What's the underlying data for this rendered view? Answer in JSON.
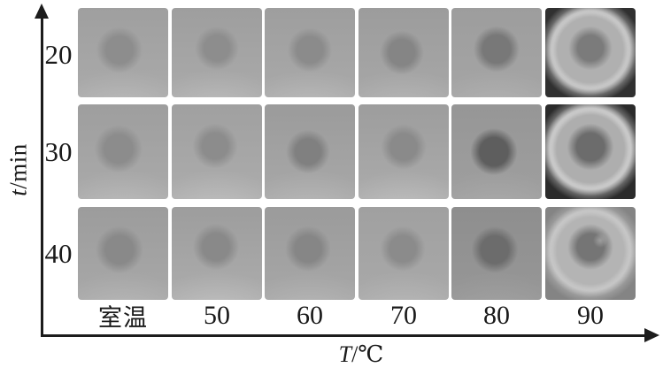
{
  "figure": {
    "axes": {
      "x_symbol": "T",
      "x_unit": "/℃",
      "x_label": "T/℃",
      "y_symbol": "t",
      "y_unit": "/min",
      "y_label": "t/min",
      "x_ticks": [
        "室温",
        "50",
        "60",
        "70",
        "80",
        "90"
      ],
      "y_ticks": [
        "20",
        "30",
        "40"
      ]
    }
  },
  "chart_data": {
    "type": "heatmap",
    "title": "",
    "xlabel": "T/℃",
    "ylabel": "t/min",
    "x_categories": [
      "室温",
      "50",
      "60",
      "70",
      "80",
      "90"
    ],
    "y_categories": [
      "20",
      "30",
      "40"
    ],
    "legend": null,
    "grid_lines": false,
    "cell_content": "grayscale photographs of circular samples in dishes; central spot darkens as temperature increases, darkest at 80-90 ℃",
    "relative_spot_darkness_1to5": [
      [
        1,
        1,
        1,
        2,
        3,
        3
      ],
      [
        1,
        1,
        2,
        1,
        5,
        4
      ],
      [
        1,
        1,
        1,
        1,
        4,
        3
      ]
    ]
  },
  "grid": {
    "cells": [
      {
        "t": "20",
        "T": "室温",
        "kind": "flat",
        "bgTop": "#9f9f9f",
        "bgBot": "#aaaaaa",
        "blob": "#8d8d8d",
        "bx": 46,
        "by": 47,
        "br": 27,
        "glow": 0.2,
        "vig": 0.1
      },
      {
        "t": "20",
        "T": "50",
        "kind": "flat",
        "bgTop": "#9e9e9e",
        "bgBot": "#aaaaaa",
        "blob": "#8d8d8d",
        "bx": 50,
        "by": 45,
        "br": 26,
        "glow": 0.22,
        "vig": 0.1
      },
      {
        "t": "20",
        "T": "60",
        "kind": "flat",
        "bgTop": "#9e9e9e",
        "bgBot": "#a9a9a9",
        "blob": "#8b8b8b",
        "bx": 50,
        "by": 47,
        "br": 27,
        "glow": 0.22,
        "vig": 0.1
      },
      {
        "t": "20",
        "T": "70",
        "kind": "flat",
        "bgTop": "#9c9c9c",
        "bgBot": "#a7a7a7",
        "blob": "#858585",
        "bx": 48,
        "by": 50,
        "br": 27,
        "glow": 0.18,
        "vig": 0.12
      },
      {
        "t": "20",
        "T": "80",
        "kind": "flat",
        "bgTop": "#9d9d9d",
        "bgBot": "#a5a5a5",
        "blob": "#787878",
        "bx": 50,
        "by": 46,
        "br": 28,
        "glow": 0.15,
        "vig": 0.12
      },
      {
        "t": "20",
        "T": "90",
        "kind": "dish",
        "corner": "#303030",
        "dish": "#b0b0b0",
        "blob": "#7b7b7b",
        "bx": 50,
        "by": 45,
        "br": 26,
        "ring": 0.4
      },
      {
        "t": "30",
        "T": "室温",
        "kind": "flat",
        "bgTop": "#9e9e9e",
        "bgBot": "#aaaaaa",
        "blob": "#8c8c8c",
        "bx": 45,
        "by": 47,
        "br": 27,
        "glow": 0.22,
        "vig": 0.1
      },
      {
        "t": "30",
        "T": "50",
        "kind": "flat",
        "bgTop": "#a0a0a0",
        "bgBot": "#acacac",
        "blob": "#8c8c8c",
        "bx": 48,
        "by": 44,
        "br": 25,
        "glow": 0.25,
        "vig": 0.08
      },
      {
        "t": "30",
        "T": "60",
        "kind": "flat",
        "bgTop": "#9b9b9b",
        "bgBot": "#a8a8a8",
        "blob": "#808080",
        "bx": 48,
        "by": 50,
        "br": 26,
        "glow": 0.2,
        "vig": 0.12
      },
      {
        "t": "30",
        "T": "70",
        "kind": "flat",
        "bgTop": "#9d9d9d",
        "bgBot": "#ababab",
        "blob": "#8a8a8a",
        "bx": 50,
        "by": 45,
        "br": 26,
        "glow": 0.25,
        "vig": 0.08
      },
      {
        "t": "30",
        "T": "80",
        "kind": "flat",
        "bgTop": "#969696",
        "bgBot": "#9f9f9f",
        "blob": "#5e5e5e",
        "bx": 47,
        "by": 50,
        "br": 28,
        "glow": 0.12,
        "vig": 0.15
      },
      {
        "t": "30",
        "T": "90",
        "kind": "dish",
        "corner": "#2b2b2b",
        "dish": "#aeaeae",
        "blob": "#6c6c6c",
        "bx": 50,
        "by": 45,
        "br": 27,
        "ring": 0.45
      },
      {
        "t": "40",
        "T": "室温",
        "kind": "flat",
        "bgTop": "#9c9c9c",
        "bgBot": "#a8a8a8",
        "blob": "#898989",
        "bx": 46,
        "by": 46,
        "br": 27,
        "glow": 0.18,
        "vig": 0.1
      },
      {
        "t": "40",
        "T": "50",
        "kind": "flat",
        "bgTop": "#9d9d9d",
        "bgBot": "#acacac",
        "blob": "#898989",
        "bx": 49,
        "by": 43,
        "br": 26,
        "glow": 0.25,
        "vig": 0.08
      },
      {
        "t": "40",
        "T": "60",
        "kind": "flat",
        "bgTop": "#9b9b9b",
        "bgBot": "#a7a7a7",
        "blob": "#868686",
        "bx": 48,
        "by": 45,
        "br": 26,
        "glow": 0.18,
        "vig": 0.1
      },
      {
        "t": "40",
        "T": "70",
        "kind": "flat",
        "bgTop": "#a0a0a0",
        "bgBot": "#a9a9a9",
        "blob": "#8b8b8b",
        "bx": 49,
        "by": 45,
        "br": 26,
        "glow": 0.18,
        "vig": 0.1
      },
      {
        "t": "40",
        "T": "80",
        "kind": "flat",
        "bgTop": "#8e8e8e",
        "bgBot": "#979797",
        "blob": "#6c6c6c",
        "bx": 48,
        "by": 46,
        "br": 27,
        "glow": 0.1,
        "vig": 0.18
      },
      {
        "t": "40",
        "T": "90",
        "kind": "dish",
        "corner": "#848484",
        "dish": "#b4b4b4",
        "blob": "#757575",
        "bx": 50,
        "by": 43,
        "br": 26,
        "ring": 0.3,
        "spot": true
      }
    ]
  }
}
